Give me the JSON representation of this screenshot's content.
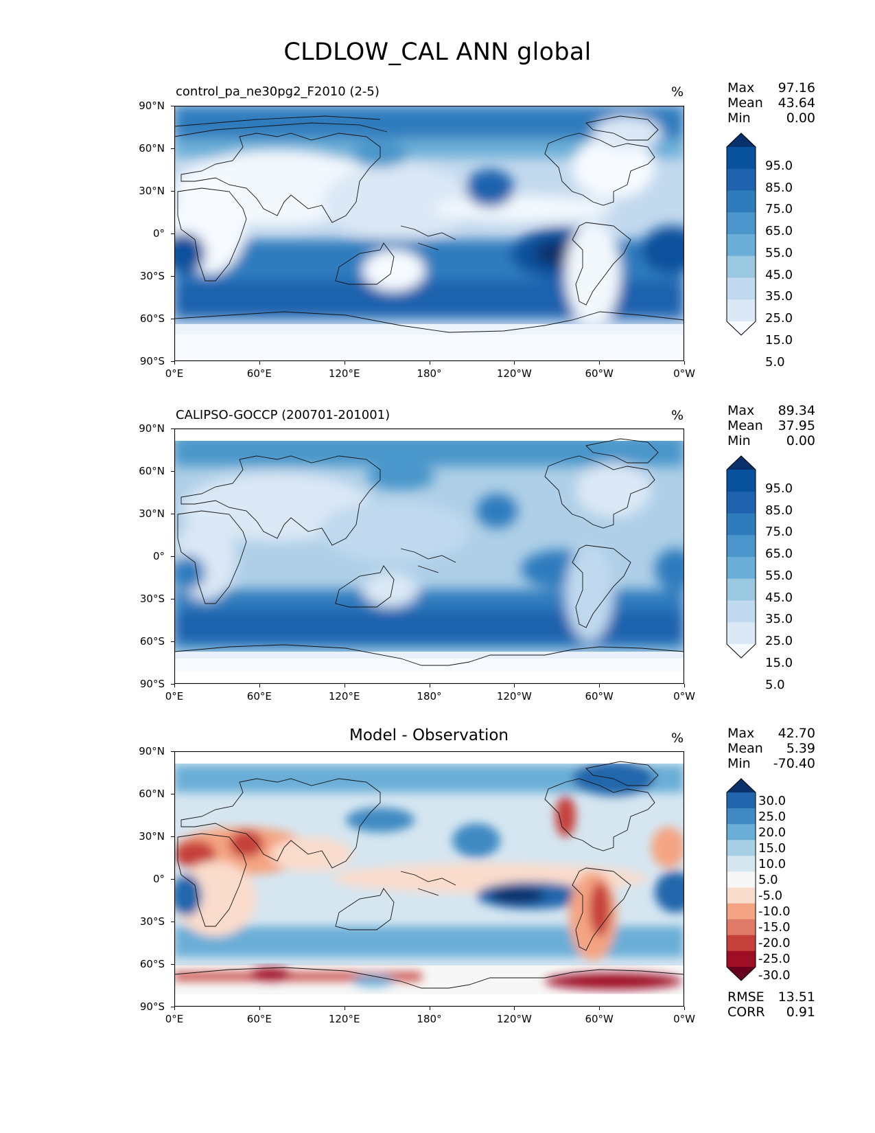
{
  "figure": {
    "title": "CLDLOW_CAL ANN global"
  },
  "axes": {
    "lat_labels": [
      "90°N",
      "60°N",
      "30°N",
      "0°",
      "30°S",
      "60°S",
      "90°S"
    ],
    "lon_labels": [
      "0°E",
      "60°E",
      "120°E",
      "180°",
      "120°W",
      "60°W",
      "0°W"
    ]
  },
  "panels": [
    {
      "title": "control_pa_ne30pg2_F2010 (2-5)",
      "units": "%",
      "stats": [
        {
          "label": "Max",
          "value": "97.16"
        },
        {
          "label": "Mean",
          "value": "43.64"
        },
        {
          "label": "Min",
          "value": "0.00"
        }
      ],
      "colorbar": {
        "labels": [
          "95.0",
          "85.0",
          "75.0",
          "65.0",
          "55.0",
          "45.0",
          "35.0",
          "25.0",
          "15.0",
          "5.0"
        ],
        "colors": [
          "#08306b",
          "#08519c",
          "#1f62ad",
          "#2f7cbd",
          "#4a96ca",
          "#6aaed7",
          "#9bc8e1",
          "#c0d9ee",
          "#dbe8f5",
          "#f7fbff"
        ]
      }
    },
    {
      "title": "CALIPSO-GOCCP (200701-201001)",
      "units": "%",
      "stats": [
        {
          "label": "Max",
          "value": "89.34"
        },
        {
          "label": "Mean",
          "value": "37.95"
        },
        {
          "label": "Min",
          "value": "0.00"
        }
      ],
      "colorbar": {
        "labels": [
          "95.0",
          "85.0",
          "75.0",
          "65.0",
          "55.0",
          "45.0",
          "35.0",
          "25.0",
          "15.0",
          "5.0"
        ],
        "colors": [
          "#08306b",
          "#08519c",
          "#1f62ad",
          "#2f7cbd",
          "#4a96ca",
          "#6aaed7",
          "#9bc8e1",
          "#c0d9ee",
          "#dbe8f5",
          "#f7fbff"
        ]
      }
    },
    {
      "title": "Model - Observation",
      "units": "%",
      "stats": [
        {
          "label": "Max",
          "value": "42.70"
        },
        {
          "label": "Mean",
          "value": "5.39"
        },
        {
          "label": "Min",
          "value": "-70.40"
        }
      ],
      "colorbar": {
        "labels": [
          "30.0",
          "25.0",
          "20.0",
          "15.0",
          "10.0",
          "5.0",
          "-5.0",
          "-10.0",
          "-15.0",
          "-20.0",
          "-25.0",
          "-30.0"
        ],
        "colors": [
          "#08306b",
          "#2166ac",
          "#3f8ac2",
          "#6aaed7",
          "#a7cfe6",
          "#d5e6f1",
          "#f7f7f7",
          "#fadccc",
          "#f4a482",
          "#e07b6a",
          "#c6403b",
          "#9e0f25",
          "#67001f"
        ]
      },
      "error_stats": [
        {
          "label": "RMSE",
          "value": "13.51"
        },
        {
          "label": "CORR",
          "value": "0.91"
        }
      ]
    }
  ]
}
